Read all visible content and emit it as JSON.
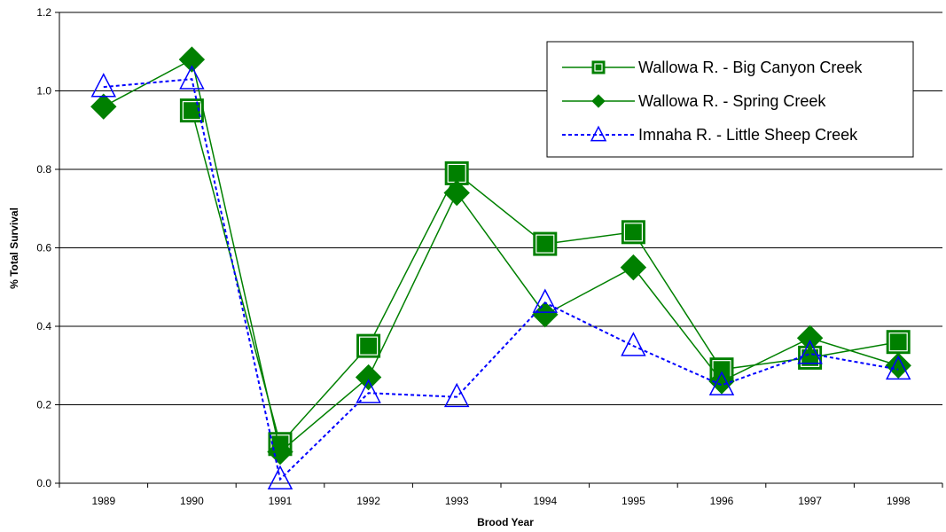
{
  "chart_data": {
    "type": "line",
    "title": "",
    "xlabel": "Brood Year",
    "ylabel": "% Total Survival",
    "categories": [
      "1989",
      "1990",
      "1991",
      "1992",
      "1993",
      "1994",
      "1995",
      "1996",
      "1997",
      "1998"
    ],
    "ylim": [
      0,
      1.2
    ],
    "yticks": [
      "0.0",
      "0.2",
      "0.4",
      "0.6",
      "0.8",
      "1.0",
      "1.2"
    ],
    "grid": true,
    "legend_position": "top-right",
    "series": [
      {
        "name": "Wallowa R. -  Big Canyon Creek",
        "marker": "square",
        "line_style": "solid",
        "color": "#008000",
        "values": [
          null,
          0.95,
          0.1,
          0.35,
          0.79,
          0.61,
          0.64,
          0.29,
          0.32,
          0.36
        ]
      },
      {
        "name": "Wallowa R. -  Spring Creek",
        "marker": "diamond",
        "line_style": "solid",
        "color": "#008000",
        "values": [
          0.96,
          1.08,
          0.08,
          0.27,
          0.74,
          0.43,
          0.55,
          0.26,
          0.37,
          0.3
        ]
      },
      {
        "name": "Imnaha R. -  Little Sheep Creek",
        "marker": "triangle",
        "line_style": "dashed",
        "color": "#0000FF",
        "values": [
          1.01,
          1.03,
          0.01,
          0.23,
          0.22,
          0.46,
          0.35,
          0.25,
          0.33,
          0.29
        ]
      }
    ]
  }
}
